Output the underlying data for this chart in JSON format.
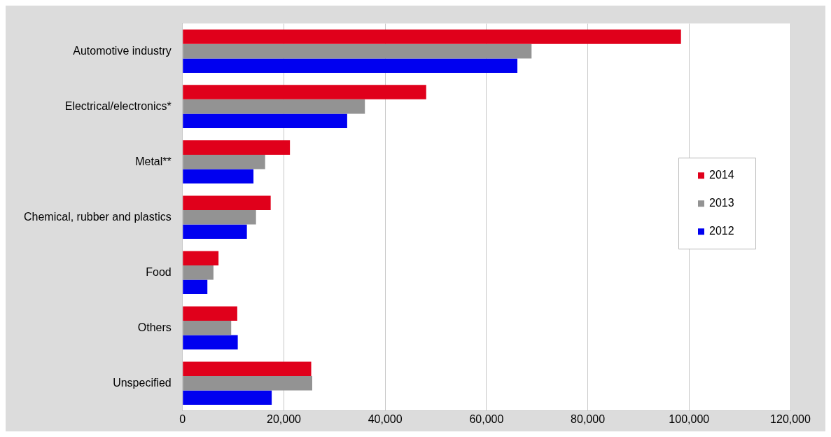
{
  "chart_data": {
    "type": "bar",
    "orientation": "horizontal",
    "categories": [
      "Automotive industry",
      "Electrical/electronics*",
      "Metal**",
      "Chemical, rubber and plastics",
      "Food",
      "Others",
      "Unspecified"
    ],
    "series": [
      {
        "name": "2014",
        "color": "#e0001b",
        "values": [
          98400,
          48100,
          21200,
          17400,
          7100,
          10800,
          25400
        ]
      },
      {
        "name": "2013",
        "color": "#939393",
        "values": [
          68900,
          36000,
          16300,
          14500,
          6100,
          9600,
          25600
        ]
      },
      {
        "name": "2012",
        "color": "#0000f0",
        "values": [
          66100,
          32500,
          14000,
          12700,
          4900,
          10900,
          17600
        ]
      }
    ],
    "xlim": [
      0,
      120000
    ],
    "xticks": [
      {
        "value": 0,
        "label": "0"
      },
      {
        "value": 20000,
        "label": "20,000"
      },
      {
        "value": 40000,
        "label": "40,000"
      },
      {
        "value": 60000,
        "label": "60,000"
      },
      {
        "value": 80000,
        "label": "80,000"
      },
      {
        "value": 100000,
        "label": "100,000"
      },
      {
        "value": 120000,
        "label": "120,000"
      }
    ],
    "grid": "x",
    "legend": "right"
  }
}
